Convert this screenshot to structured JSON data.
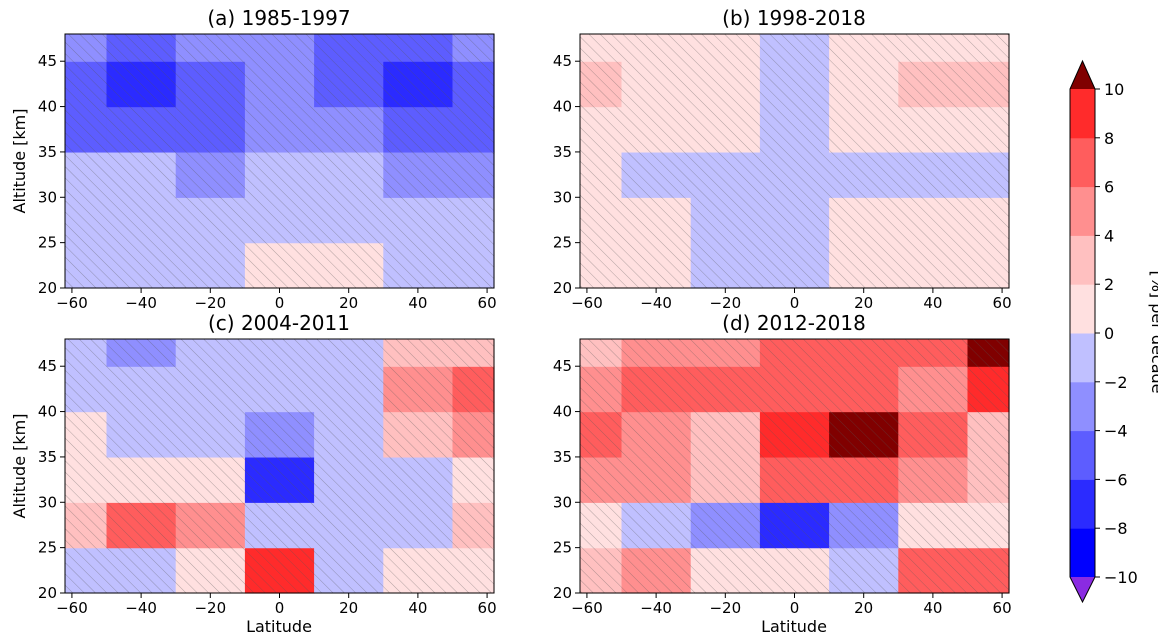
{
  "chart_data": [
    {
      "type": "heatmap",
      "title": "(a) 1985-1997",
      "xlabel": "",
      "ylabel": "Altitude [km]",
      "xlim": [
        -62,
        62
      ],
      "ylim": [
        20,
        48
      ],
      "xticks": [
        "−60",
        "−40",
        "−20",
        "0",
        "20",
        "40",
        "60"
      ],
      "yticks": [
        "20",
        "25",
        "30",
        "35",
        "40",
        "45"
      ],
      "lat": [
        -60,
        -40,
        -20,
        0,
        20,
        40,
        60
      ],
      "alt": [
        22.5,
        27.5,
        32.5,
        37.5,
        42.5,
        47.5
      ],
      "trend": [
        [
          -1.5,
          -1.5,
          -0.5,
          0.5,
          1.5,
          -0.5,
          -1.5
        ],
        [
          -0.5,
          -1.5,
          -1.5,
          -0.5,
          -1.5,
          -1.5,
          -1.5
        ],
        [
          -1.5,
          -1.5,
          -3.5,
          -1.5,
          -1.5,
          -3.5,
          -3.5
        ],
        [
          -4.5,
          -4.5,
          -4.5,
          -3.5,
          -3.5,
          -4.5,
          -4.5
        ],
        [
          -5.5,
          -6.5,
          -4.5,
          -2.5,
          -4.5,
          -6.5,
          -5.5
        ],
        [
          -3.5,
          -4.5,
          -3.5,
          -3.5,
          -4.5,
          -4.5,
          -3.5
        ]
      ]
    },
    {
      "type": "heatmap",
      "title": "(b) 1998-2018",
      "xlabel": "",
      "ylabel": "",
      "xlim": [
        -62,
        62
      ],
      "ylim": [
        20,
        48
      ],
      "xticks": [
        "−60",
        "−40",
        "−20",
        "0",
        "20",
        "40",
        "60"
      ],
      "yticks": [
        "20",
        "25",
        "30",
        "35",
        "40",
        "45"
      ],
      "lat": [
        -60,
        -40,
        -20,
        0,
        20,
        40,
        60
      ],
      "alt": [
        22.5,
        27.5,
        32.5,
        37.5,
        42.5,
        47.5
      ],
      "trend": [
        [
          0.5,
          0.5,
          -1.5,
          -0.5,
          0.5,
          1.5,
          0.5
        ],
        [
          1.5,
          0.5,
          -0.5,
          -0.5,
          0.5,
          0.5,
          0.5
        ],
        [
          0.5,
          -0.5,
          -0.5,
          -0.5,
          -1.5,
          -1.5,
          -0.5
        ],
        [
          1.5,
          0.5,
          0.5,
          -0.5,
          0.5,
          1.5,
          1.5
        ],
        [
          2.5,
          1.5,
          0.5,
          -0.5,
          1.5,
          2.5,
          2.5
        ],
        [
          1.5,
          0.5,
          0.5,
          -1.5,
          0.5,
          0.5,
          0.5
        ]
      ]
    },
    {
      "type": "heatmap",
      "title": "(c) 2004-2011",
      "xlabel": "Latitude",
      "ylabel": "Altitude [km]",
      "xlim": [
        -62,
        62
      ],
      "ylim": [
        20,
        48
      ],
      "xticks": [
        "−60",
        "−40",
        "−20",
        "0",
        "20",
        "40",
        "60"
      ],
      "yticks": [
        "20",
        "25",
        "30",
        "35",
        "40",
        "45"
      ],
      "lat": [
        -60,
        -40,
        -20,
        0,
        20,
        40,
        60
      ],
      "alt": [
        22.5,
        27.5,
        32.5,
        37.5,
        42.5,
        47.5
      ],
      "trend": [
        [
          -0.5,
          -0.5,
          0.5,
          8.5,
          -0.5,
          1.5,
          0.5
        ],
        [
          2.5,
          6.5,
          4.5,
          -0.5,
          -1.5,
          -0.5,
          2.5
        ],
        [
          0.5,
          1.5,
          0.5,
          -6.5,
          -1.5,
          -0.5,
          0.5
        ],
        [
          0.5,
          -0.5,
          -0.5,
          -2.5,
          -0.5,
          3.5,
          5.5
        ],
        [
          -0.5,
          -0.5,
          -1.5,
          -0.5,
          -0.5,
          4.5,
          7.5
        ],
        [
          -1.5,
          -2.5,
          -1.5,
          -0.5,
          -0.5,
          2.5,
          3.5
        ]
      ]
    },
    {
      "type": "heatmap",
      "title": "(d) 2012-2018",
      "xlabel": "Latitude",
      "ylabel": "",
      "xlim": [
        -62,
        62
      ],
      "ylim": [
        20,
        48
      ],
      "xticks": [
        "−60",
        "−40",
        "−20",
        "0",
        "20",
        "40",
        "60"
      ],
      "yticks": [
        "20",
        "25",
        "30",
        "35",
        "40",
        "45"
      ],
      "lat": [
        -60,
        -40,
        -20,
        0,
        20,
        40,
        60
      ],
      "alt": [
        22.5,
        27.5,
        32.5,
        37.5,
        42.5,
        47.5
      ],
      "trend": [
        [
          2.5,
          4.5,
          1.5,
          0.5,
          -0.5,
          7.5,
          6.5
        ],
        [
          1.5,
          -0.5,
          -3.5,
          -7.5,
          -2.5,
          0.5,
          1.5
        ],
        [
          5.5,
          4.5,
          2.5,
          6.5,
          7.5,
          5.5,
          2.5
        ],
        [
          6.5,
          5.5,
          3.5,
          8.5,
          10.5,
          6.5,
          3.5
        ],
        [
          5.5,
          7.5,
          6.5,
          7.5,
          7.5,
          5.5,
          9.5
        ],
        [
          3.5,
          5.5,
          5.5,
          6.5,
          6.5,
          6.5,
          10.5
        ]
      ]
    }
  ],
  "colorbar": {
    "label": "[%] per decade",
    "ticks": [
      "−10",
      "−8",
      "−6",
      "−4",
      "−2",
      "0",
      "2",
      "4",
      "6",
      "8",
      "10"
    ],
    "levels": [
      -10,
      -8,
      -6,
      -4,
      -2,
      0,
      2,
      4,
      6,
      8,
      10
    ],
    "under_color": "#8a2be2",
    "over_color": "#800000",
    "colors": [
      "#0000ff",
      "#2b2bff",
      "#5d5dff",
      "#8f8fff",
      "#c0c0ff",
      "#ffe0e0",
      "#ffc0c0",
      "#ff8f8f",
      "#ff5d5d",
      "#ff2b2b"
    ]
  }
}
